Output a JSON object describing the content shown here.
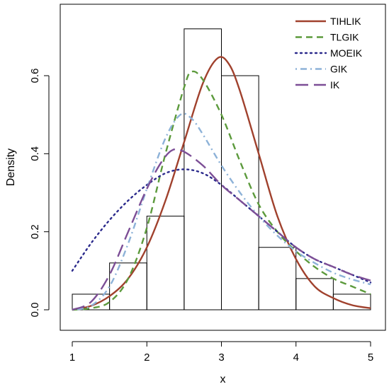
{
  "chart_data": {
    "type": "histogram",
    "xlabel": "x",
    "ylabel": "Density",
    "xlim": [
      1,
      5
    ],
    "ylim": [
      0,
      0.72
    ],
    "x_ticks": [
      1,
      2,
      3,
      4,
      5
    ],
    "y_ticks": [
      0.0,
      0.2,
      0.4,
      0.6
    ],
    "y_tick_labels": [
      "0.0",
      "0.2",
      "0.4",
      "0.6"
    ],
    "x_tick_labels": [
      "1",
      "2",
      "3",
      "4",
      "5"
    ],
    "legend_position": "top-right",
    "histogram": {
      "bins": [
        {
          "x0": 1.0,
          "x1": 1.5,
          "density": 0.04
        },
        {
          "x0": 1.5,
          "x1": 2.0,
          "density": 0.12
        },
        {
          "x0": 2.0,
          "x1": 2.5,
          "density": 0.24
        },
        {
          "x0": 2.5,
          "x1": 3.0,
          "density": 0.72
        },
        {
          "x0": 3.0,
          "x1": 3.5,
          "density": 0.6
        },
        {
          "x0": 3.5,
          "x1": 4.0,
          "density": 0.16
        },
        {
          "x0": 4.0,
          "x1": 4.5,
          "density": 0.08
        },
        {
          "x0": 4.5,
          "x1": 5.0,
          "density": 0.04
        }
      ]
    },
    "series": [
      {
        "name": "TIHLIK",
        "color": "#a0412d",
        "dash": "solid",
        "points": [
          [
            1.0,
            0.0
          ],
          [
            1.25,
            0.01
          ],
          [
            1.5,
            0.035
          ],
          [
            1.75,
            0.08
          ],
          [
            2.0,
            0.16
          ],
          [
            2.25,
            0.28
          ],
          [
            2.5,
            0.43
          ],
          [
            2.75,
            0.58
          ],
          [
            2.95,
            0.645
          ],
          [
            3.1,
            0.63
          ],
          [
            3.25,
            0.56
          ],
          [
            3.5,
            0.4
          ],
          [
            3.75,
            0.24
          ],
          [
            4.0,
            0.13
          ],
          [
            4.25,
            0.06
          ],
          [
            4.5,
            0.03
          ],
          [
            4.75,
            0.012
          ],
          [
            5.0,
            0.004
          ]
        ]
      },
      {
        "name": "TLGIK",
        "color": "#5c9a3c",
        "dash": "dashed",
        "points": [
          [
            1.0,
            0.0
          ],
          [
            1.25,
            0.004
          ],
          [
            1.5,
            0.02
          ],
          [
            1.75,
            0.08
          ],
          [
            2.0,
            0.21
          ],
          [
            2.25,
            0.4
          ],
          [
            2.5,
            0.57
          ],
          [
            2.6,
            0.61
          ],
          [
            2.75,
            0.59
          ],
          [
            3.0,
            0.5
          ],
          [
            3.25,
            0.38
          ],
          [
            3.5,
            0.27
          ],
          [
            3.75,
            0.2
          ],
          [
            4.0,
            0.15
          ],
          [
            4.25,
            0.11
          ],
          [
            4.5,
            0.08
          ],
          [
            4.75,
            0.06
          ],
          [
            5.0,
            0.04
          ]
        ]
      },
      {
        "name": "MOEIK",
        "color": "#2b2a8c",
        "dash": "dotted",
        "points": [
          [
            1.0,
            0.1
          ],
          [
            1.25,
            0.17
          ],
          [
            1.5,
            0.23
          ],
          [
            1.75,
            0.28
          ],
          [
            2.0,
            0.32
          ],
          [
            2.25,
            0.35
          ],
          [
            2.5,
            0.36
          ],
          [
            2.75,
            0.35
          ],
          [
            3.0,
            0.32
          ],
          [
            3.25,
            0.28
          ],
          [
            3.5,
            0.24
          ],
          [
            3.75,
            0.2
          ],
          [
            4.0,
            0.16
          ],
          [
            4.25,
            0.13
          ],
          [
            4.5,
            0.11
          ],
          [
            4.75,
            0.09
          ],
          [
            5.0,
            0.07
          ]
        ]
      },
      {
        "name": "GIK",
        "color": "#8db2d8",
        "dash": "dashdot",
        "points": [
          [
            1.0,
            0.0
          ],
          [
            1.25,
            0.01
          ],
          [
            1.5,
            0.06
          ],
          [
            1.75,
            0.17
          ],
          [
            2.0,
            0.31
          ],
          [
            2.25,
            0.44
          ],
          [
            2.45,
            0.5
          ],
          [
            2.6,
            0.49
          ],
          [
            2.75,
            0.45
          ],
          [
            3.0,
            0.37
          ],
          [
            3.25,
            0.3
          ],
          [
            3.5,
            0.24
          ],
          [
            3.75,
            0.19
          ],
          [
            4.0,
            0.15
          ],
          [
            4.25,
            0.12
          ],
          [
            4.5,
            0.095
          ],
          [
            4.75,
            0.078
          ],
          [
            5.0,
            0.065
          ]
        ]
      },
      {
        "name": "IK",
        "color": "#7c4e96",
        "dash": "longdash",
        "points": [
          [
            1.0,
            0.0
          ],
          [
            1.25,
            0.02
          ],
          [
            1.5,
            0.09
          ],
          [
            1.75,
            0.2
          ],
          [
            2.0,
            0.31
          ],
          [
            2.2,
            0.38
          ],
          [
            2.35,
            0.41
          ],
          [
            2.5,
            0.405
          ],
          [
            2.75,
            0.37
          ],
          [
            3.0,
            0.32
          ],
          [
            3.25,
            0.28
          ],
          [
            3.5,
            0.24
          ],
          [
            3.75,
            0.2
          ],
          [
            4.0,
            0.16
          ],
          [
            4.25,
            0.13
          ],
          [
            4.5,
            0.11
          ],
          [
            4.75,
            0.09
          ],
          [
            5.0,
            0.075
          ]
        ]
      }
    ]
  }
}
